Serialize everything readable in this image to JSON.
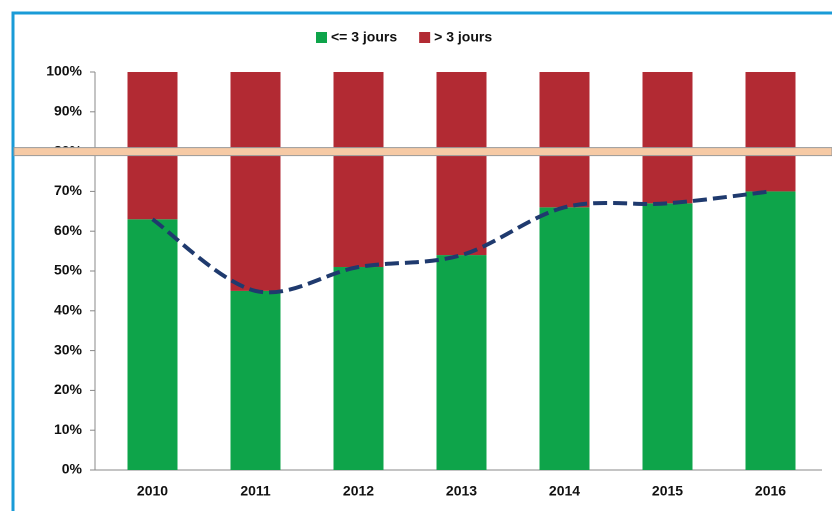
{
  "chart_data": {
    "type": "stacked_bar",
    "categories": [
      "2010",
      "2011",
      "2012",
      "2013",
      "2014",
      "2015",
      "2016"
    ],
    "series": [
      {
        "name": "<= 3 jours",
        "color": "#0ea44a",
        "values": [
          63,
          45,
          51,
          54,
          66,
          67,
          70
        ]
      },
      {
        "name": "> 3 jours",
        "color": "#b22a33",
        "values": [
          37,
          55,
          49,
          46,
          34,
          33,
          30
        ]
      }
    ],
    "trend_line": {
      "color": "#1f3a6e",
      "dashed": true,
      "series": 0
    },
    "reference_line": {
      "value": 80,
      "color": "#f6caa5"
    },
    "ylim": [
      0,
      100
    ],
    "yticks": [
      {
        "value": 0,
        "label": "0%"
      },
      {
        "value": 10,
        "label": "10%"
      },
      {
        "value": 20,
        "label": "20%"
      },
      {
        "value": 30,
        "label": "30%"
      },
      {
        "value": 40,
        "label": "40%"
      },
      {
        "value": 50,
        "label": "50%"
      },
      {
        "value": 60,
        "label": "60%"
      },
      {
        "value": 70,
        "label": "70%"
      },
      {
        "value": 80,
        "label": "80%"
      },
      {
        "value": 90,
        "label": "90%"
      },
      {
        "value": 100,
        "label": "100%"
      }
    ],
    "legend": "top"
  }
}
